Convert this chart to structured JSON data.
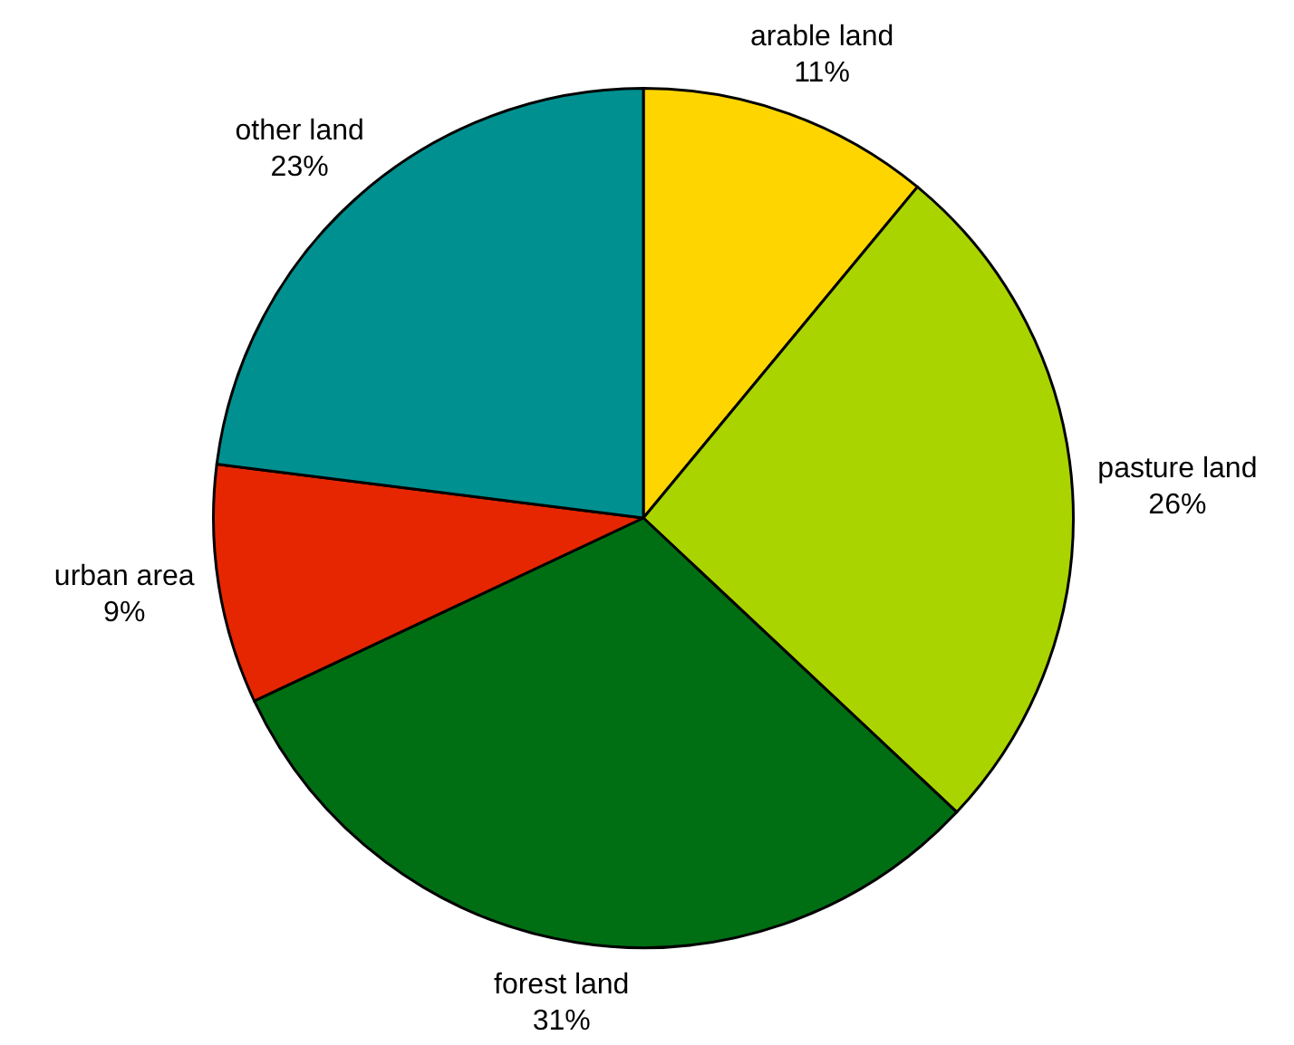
{
  "chart_data": {
    "type": "pie",
    "categories": [
      "arable land",
      "pasture land",
      "forest land",
      "urban area",
      "other land"
    ],
    "values": [
      11,
      26,
      31,
      9,
      23
    ],
    "colors": [
      "#ffd500",
      "#aad400",
      "#006f14",
      "#e62600",
      "#009090"
    ],
    "value_labels": [
      "11%",
      "26%",
      "31%",
      "9%",
      "23%"
    ]
  }
}
